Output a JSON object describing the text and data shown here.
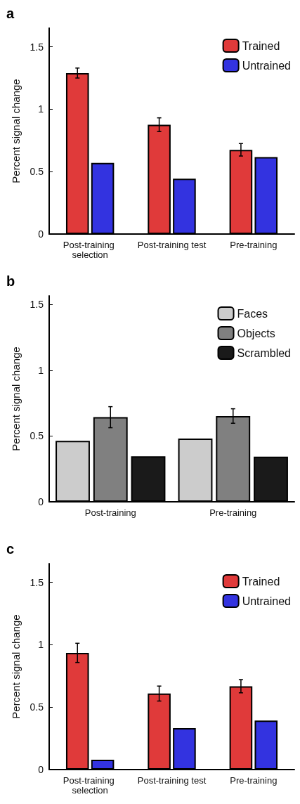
{
  "chart_data": [
    {
      "type": "bar",
      "title": "a",
      "ylabel": "Percent signal change",
      "categories": [
        "Post-training selection",
        "Post-training test",
        "Pre-training"
      ],
      "series": [
        {
          "name": "Trained",
          "color": "#e03a3a",
          "values": [
            1.29,
            0.876,
            0.675
          ],
          "errors": [
            0.04,
            0.055,
            0.05
          ]
        },
        {
          "name": "Untrained",
          "color": "#3333e0",
          "values": [
            0.57,
            0.443,
            0.616
          ]
        }
      ],
      "ylim": [
        0,
        1.65
      ],
      "yticks": [
        0,
        0.5,
        1,
        1.5
      ],
      "grid": false,
      "legend": "top right"
    },
    {
      "type": "bar",
      "title": "b",
      "ylabel": "Percent signal change",
      "categories": [
        "Post-training",
        "Pre-training"
      ],
      "series": [
        {
          "name": "Faces",
          "color": "#cccccc",
          "values": [
            0.463,
            0.481
          ]
        },
        {
          "name": "Objects",
          "color": "#808080",
          "values": [
            0.643,
            0.652
          ],
          "errors": [
            0.08,
            0.055
          ]
        },
        {
          "name": "Scrambled",
          "color": "#1a1a1a",
          "values": [
            0.346,
            0.343
          ]
        }
      ],
      "ylim": [
        0,
        1.565
      ],
      "yticks": [
        0,
        0.5,
        1,
        1.5
      ],
      "grid": false,
      "legend": "top right"
    },
    {
      "type": "bar",
      "title": "c",
      "ylabel": "Percent signal change",
      "categories": [
        "Post-training selection",
        "Post-training test",
        "Pre-training"
      ],
      "series": [
        {
          "name": "Trained",
          "color": "#e03a3a",
          "values": [
            0.935,
            0.609,
            0.668
          ],
          "errors": [
            0.077,
            0.06,
            0.053
          ]
        },
        {
          "name": "Untrained",
          "color": "#3333e0",
          "values": [
            0.079,
            0.332,
            0.393
          ]
        }
      ],
      "ylim": [
        0,
        1.65
      ],
      "yticks": [
        0,
        0.5,
        1,
        1.5
      ],
      "grid": false,
      "legend": "top right"
    }
  ]
}
